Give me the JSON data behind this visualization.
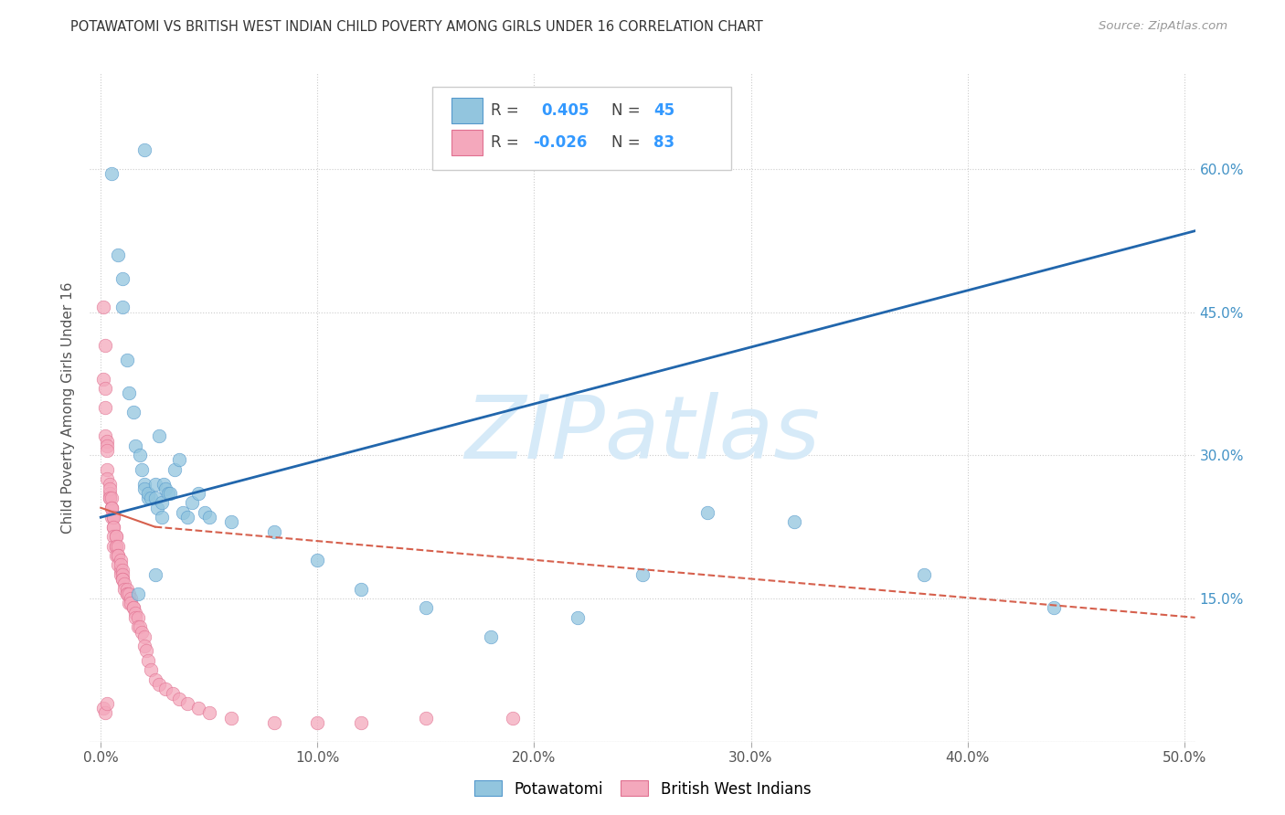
{
  "title": "POTAWATOMI VS BRITISH WEST INDIAN CHILD POVERTY AMONG GIRLS UNDER 16 CORRELATION CHART",
  "source": "Source: ZipAtlas.com",
  "ylabel": "Child Poverty Among Girls Under 16",
  "xlim": [
    -0.005,
    0.505
  ],
  "ylim": [
    0.0,
    0.7
  ],
  "xticks": [
    0.0,
    0.1,
    0.2,
    0.3,
    0.4,
    0.5
  ],
  "xticklabels": [
    "0.0%",
    "10.0%",
    "20.0%",
    "30.0%",
    "40.0%",
    "50.0%"
  ],
  "yticks": [
    0.0,
    0.15,
    0.3,
    0.45,
    0.6
  ],
  "yticklabels": [
    "",
    "15.0%",
    "30.0%",
    "45.0%",
    "60.0%"
  ],
  "legend_labels": [
    "Potawatomi",
    "British West Indians"
  ],
  "color_blue": "#92c5de",
  "color_pink": "#f4a8bc",
  "line_color_blue": "#2166ac",
  "line_color_pink": "#d6604d",
  "watermark": "ZIPatlas",
  "watermark_color": "#d6eaf8",
  "background_color": "#ffffff",
  "pot_x": [
    0.005,
    0.008,
    0.01,
    0.01,
    0.012,
    0.013,
    0.015,
    0.016,
    0.018,
    0.019,
    0.02,
    0.02,
    0.022,
    0.022,
    0.023,
    0.025,
    0.025,
    0.026,
    0.027,
    0.028,
    0.028,
    0.029,
    0.03,
    0.031,
    0.032,
    0.034,
    0.036,
    0.038,
    0.04,
    0.042,
    0.045,
    0.048,
    0.05,
    0.06,
    0.08,
    0.1,
    0.12,
    0.15,
    0.18,
    0.22,
    0.25,
    0.28,
    0.32,
    0.38,
    0.44,
    0.017,
    0.02,
    0.025
  ],
  "pot_y": [
    0.595,
    0.51,
    0.485,
    0.455,
    0.4,
    0.365,
    0.345,
    0.31,
    0.3,
    0.285,
    0.27,
    0.265,
    0.255,
    0.26,
    0.255,
    0.27,
    0.255,
    0.245,
    0.32,
    0.25,
    0.235,
    0.27,
    0.265,
    0.26,
    0.26,
    0.285,
    0.295,
    0.24,
    0.235,
    0.25,
    0.26,
    0.24,
    0.235,
    0.23,
    0.22,
    0.19,
    0.16,
    0.14,
    0.11,
    0.13,
    0.175,
    0.24,
    0.23,
    0.175,
    0.14,
    0.155,
    0.62,
    0.175
  ],
  "bwi_x": [
    0.001,
    0.001,
    0.002,
    0.002,
    0.002,
    0.002,
    0.003,
    0.003,
    0.003,
    0.003,
    0.003,
    0.004,
    0.004,
    0.004,
    0.004,
    0.004,
    0.005,
    0.005,
    0.005,
    0.005,
    0.005,
    0.006,
    0.006,
    0.006,
    0.006,
    0.006,
    0.006,
    0.007,
    0.007,
    0.007,
    0.007,
    0.007,
    0.008,
    0.008,
    0.008,
    0.008,
    0.009,
    0.009,
    0.009,
    0.009,
    0.01,
    0.01,
    0.01,
    0.01,
    0.011,
    0.011,
    0.012,
    0.012,
    0.012,
    0.013,
    0.013,
    0.014,
    0.014,
    0.015,
    0.015,
    0.016,
    0.016,
    0.017,
    0.017,
    0.018,
    0.019,
    0.02,
    0.02,
    0.021,
    0.022,
    0.023,
    0.025,
    0.027,
    0.03,
    0.033,
    0.036,
    0.04,
    0.045,
    0.05,
    0.06,
    0.08,
    0.1,
    0.12,
    0.15,
    0.19,
    0.001,
    0.002,
    0.003
  ],
  "bwi_y": [
    0.455,
    0.38,
    0.415,
    0.37,
    0.35,
    0.32,
    0.315,
    0.31,
    0.305,
    0.285,
    0.275,
    0.27,
    0.26,
    0.255,
    0.265,
    0.255,
    0.245,
    0.255,
    0.245,
    0.235,
    0.245,
    0.235,
    0.225,
    0.235,
    0.225,
    0.215,
    0.205,
    0.215,
    0.205,
    0.215,
    0.205,
    0.195,
    0.205,
    0.195,
    0.195,
    0.185,
    0.19,
    0.18,
    0.185,
    0.175,
    0.18,
    0.175,
    0.17,
    0.17,
    0.165,
    0.16,
    0.16,
    0.155,
    0.155,
    0.155,
    0.145,
    0.15,
    0.145,
    0.14,
    0.14,
    0.135,
    0.13,
    0.13,
    0.12,
    0.12,
    0.115,
    0.11,
    0.1,
    0.095,
    0.085,
    0.075,
    0.065,
    0.06,
    0.055,
    0.05,
    0.045,
    0.04,
    0.035,
    0.03,
    0.025,
    0.02,
    0.02,
    0.02,
    0.025,
    0.025,
    0.035,
    0.03,
    0.04
  ],
  "pot_line_x0": 0.0,
  "pot_line_x1": 0.505,
  "pot_line_y0": 0.235,
  "pot_line_y1": 0.535,
  "bwi_line_solid_x0": 0.0,
  "bwi_line_solid_x1": 0.025,
  "bwi_line_solid_y0": 0.245,
  "bwi_line_solid_y1": 0.225,
  "bwi_line_dash_x0": 0.025,
  "bwi_line_dash_x1": 0.505,
  "bwi_line_dash_y0": 0.225,
  "bwi_line_dash_y1": 0.13
}
